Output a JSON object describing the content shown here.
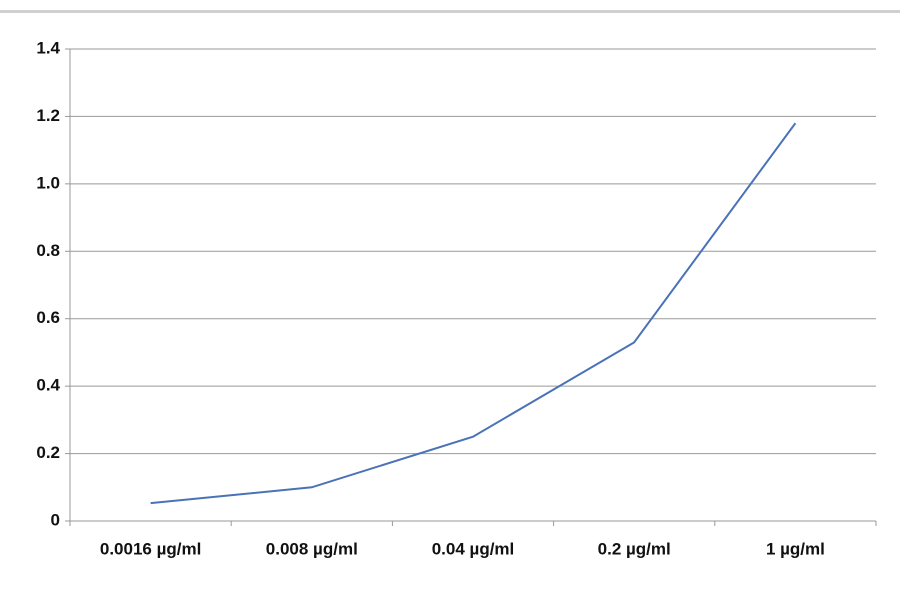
{
  "chart_data": {
    "type": "line",
    "categories": [
      "0.0016 µg/ml",
      "0.008 µg/ml",
      "0.04 µg/ml",
      "0.2 µg/ml",
      "1 µg/ml"
    ],
    "series": [
      {
        "color": "#4a72b8",
        "values": [
          0.053,
          0.1,
          0.25,
          0.53,
          1.18
        ]
      }
    ],
    "ylim": [
      0,
      1.4
    ],
    "yticks": [
      0,
      0.2,
      0.4,
      0.6,
      0.8,
      {
        "value": 1,
        "label": "1.0"
      },
      1.2,
      1.4
    ],
    "grid": true
  }
}
